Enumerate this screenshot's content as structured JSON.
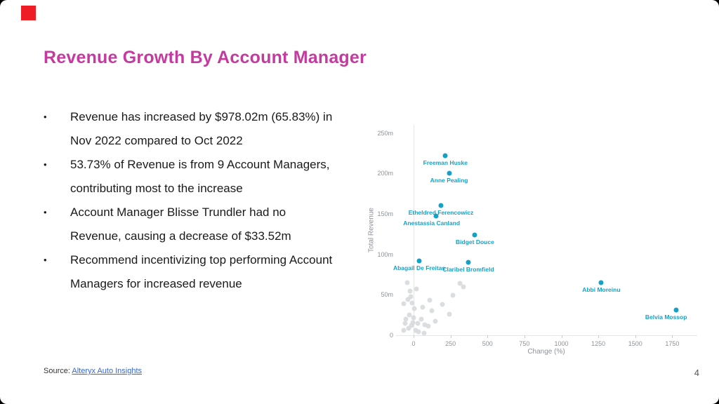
{
  "slide": {
    "title": "Revenue Growth By Account Manager",
    "bullets": [
      "Revenue has increased by $978.02m (65.83%) in Nov 2022 compared to Oct 2022",
      "53.73% of Revenue is from 9 Account Managers, contributing most to the increase",
      "Account Manager Blisse Trundler had no Revenue, causing a decrease of $33.52m",
      "Recommend incentivizing top performing Account Managers for increased revenue"
    ],
    "source_label": "Source:",
    "source_link": "Alteryx Auto Insights",
    "page_number": "4"
  },
  "colors": {
    "title": "#c43a9e",
    "brand_square": "#ee1c25",
    "link": "#3a66d1",
    "highlight": "#16a1c4",
    "muted_point": "#d7dade"
  },
  "chart_data": {
    "type": "scatter",
    "title": "",
    "xlabel": "Change (%)",
    "ylabel": "Total Revenue",
    "xlim": [
      -100,
      1900
    ],
    "ylim": [
      0,
      260
    ],
    "grid": false,
    "legend": "none",
    "x_ticks": [
      {
        "v": 0,
        "label": "0"
      },
      {
        "v": 250,
        "label": "250"
      },
      {
        "v": 500,
        "label": "500"
      },
      {
        "v": 750,
        "label": "750"
      },
      {
        "v": 1000,
        "label": "1000"
      },
      {
        "v": 1250,
        "label": "1250"
      },
      {
        "v": 1500,
        "label": "1500"
      },
      {
        "v": 1750,
        "label": "1750"
      }
    ],
    "y_ticks": [
      {
        "v": 0,
        "label": "0"
      },
      {
        "v": 50,
        "label": "50m"
      },
      {
        "v": 100,
        "label": "100m"
      },
      {
        "v": 150,
        "label": "150m"
      },
      {
        "v": 200,
        "label": "200m"
      },
      {
        "v": 250,
        "label": "250m"
      }
    ],
    "highlighted_points": [
      {
        "name": "Freeman Huske",
        "x": 215,
        "y": 222
      },
      {
        "name": "Anne Pealing",
        "x": 240,
        "y": 200
      },
      {
        "name": "Etheldred Ferencowicz",
        "x": 185,
        "y": 160
      },
      {
        "name": "Anestassia Canland",
        "x": 150,
        "y": 147,
        "ldx": -6
      },
      {
        "name": "Bidget Douce",
        "x": 415,
        "y": 124
      },
      {
        "name": "Claribel Bromfield",
        "x": 370,
        "y": 90
      },
      {
        "name": "Abagail De Freitas",
        "x": 38,
        "y": 92
      },
      {
        "name": "Abbi Moreinu",
        "x": 1270,
        "y": 65
      },
      {
        "name": "Belvia Mossop",
        "x": 1775,
        "y": 31,
        "ldx": -14
      }
    ],
    "other_points": [
      [
        -43,
        65
      ],
      [
        -19,
        48
      ],
      [
        -66,
        39
      ],
      [
        5,
        33
      ],
      [
        -28,
        25
      ],
      [
        -52,
        20
      ],
      [
        -5,
        16
      ],
      [
        28,
        15
      ],
      [
        52,
        20
      ],
      [
        76,
        13
      ],
      [
        100,
        11
      ],
      [
        -33,
        9
      ],
      [
        14,
        6
      ],
      [
        -66,
        6
      ],
      [
        123,
        30
      ],
      [
        195,
        38
      ],
      [
        266,
        49
      ],
      [
        313,
        64
      ],
      [
        337,
        60
      ],
      [
        242,
        26
      ],
      [
        109,
        43
      ],
      [
        147,
        17
      ],
      [
        33,
        4
      ],
      [
        71,
        3
      ],
      [
        -57,
        15
      ],
      [
        -14,
        12
      ],
      [
        -40,
        44
      ],
      [
        20,
        57
      ],
      [
        -8,
        40
      ],
      [
        -25,
        55
      ],
      [
        2,
        22
      ],
      [
        60,
        35
      ]
    ]
  }
}
